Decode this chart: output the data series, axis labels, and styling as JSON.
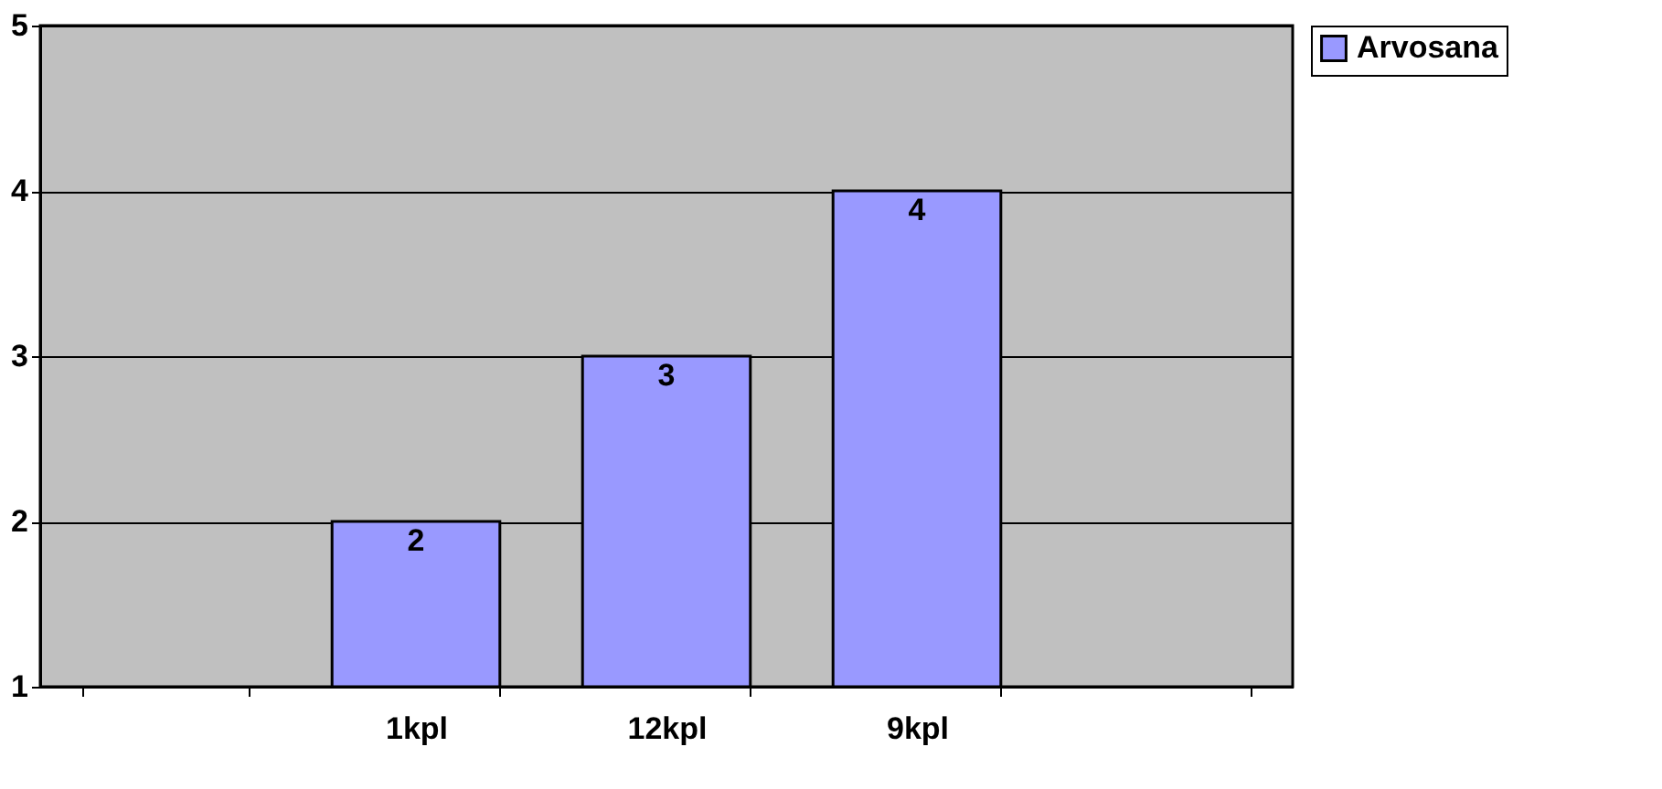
{
  "chart_data": {
    "type": "bar",
    "categories": [
      null,
      "1kpl",
      "12kpl",
      "9kpl",
      null
    ],
    "series": [
      {
        "name": "Arvosana",
        "color": "#9999ff",
        "values": [
          null,
          2,
          3,
          4,
          null
        ]
      }
    ],
    "ylim": [
      1,
      5
    ],
    "yticks": [
      1,
      2,
      3,
      4,
      5
    ],
    "grid": "y",
    "legend": "top right",
    "data_labels": true
  }
}
